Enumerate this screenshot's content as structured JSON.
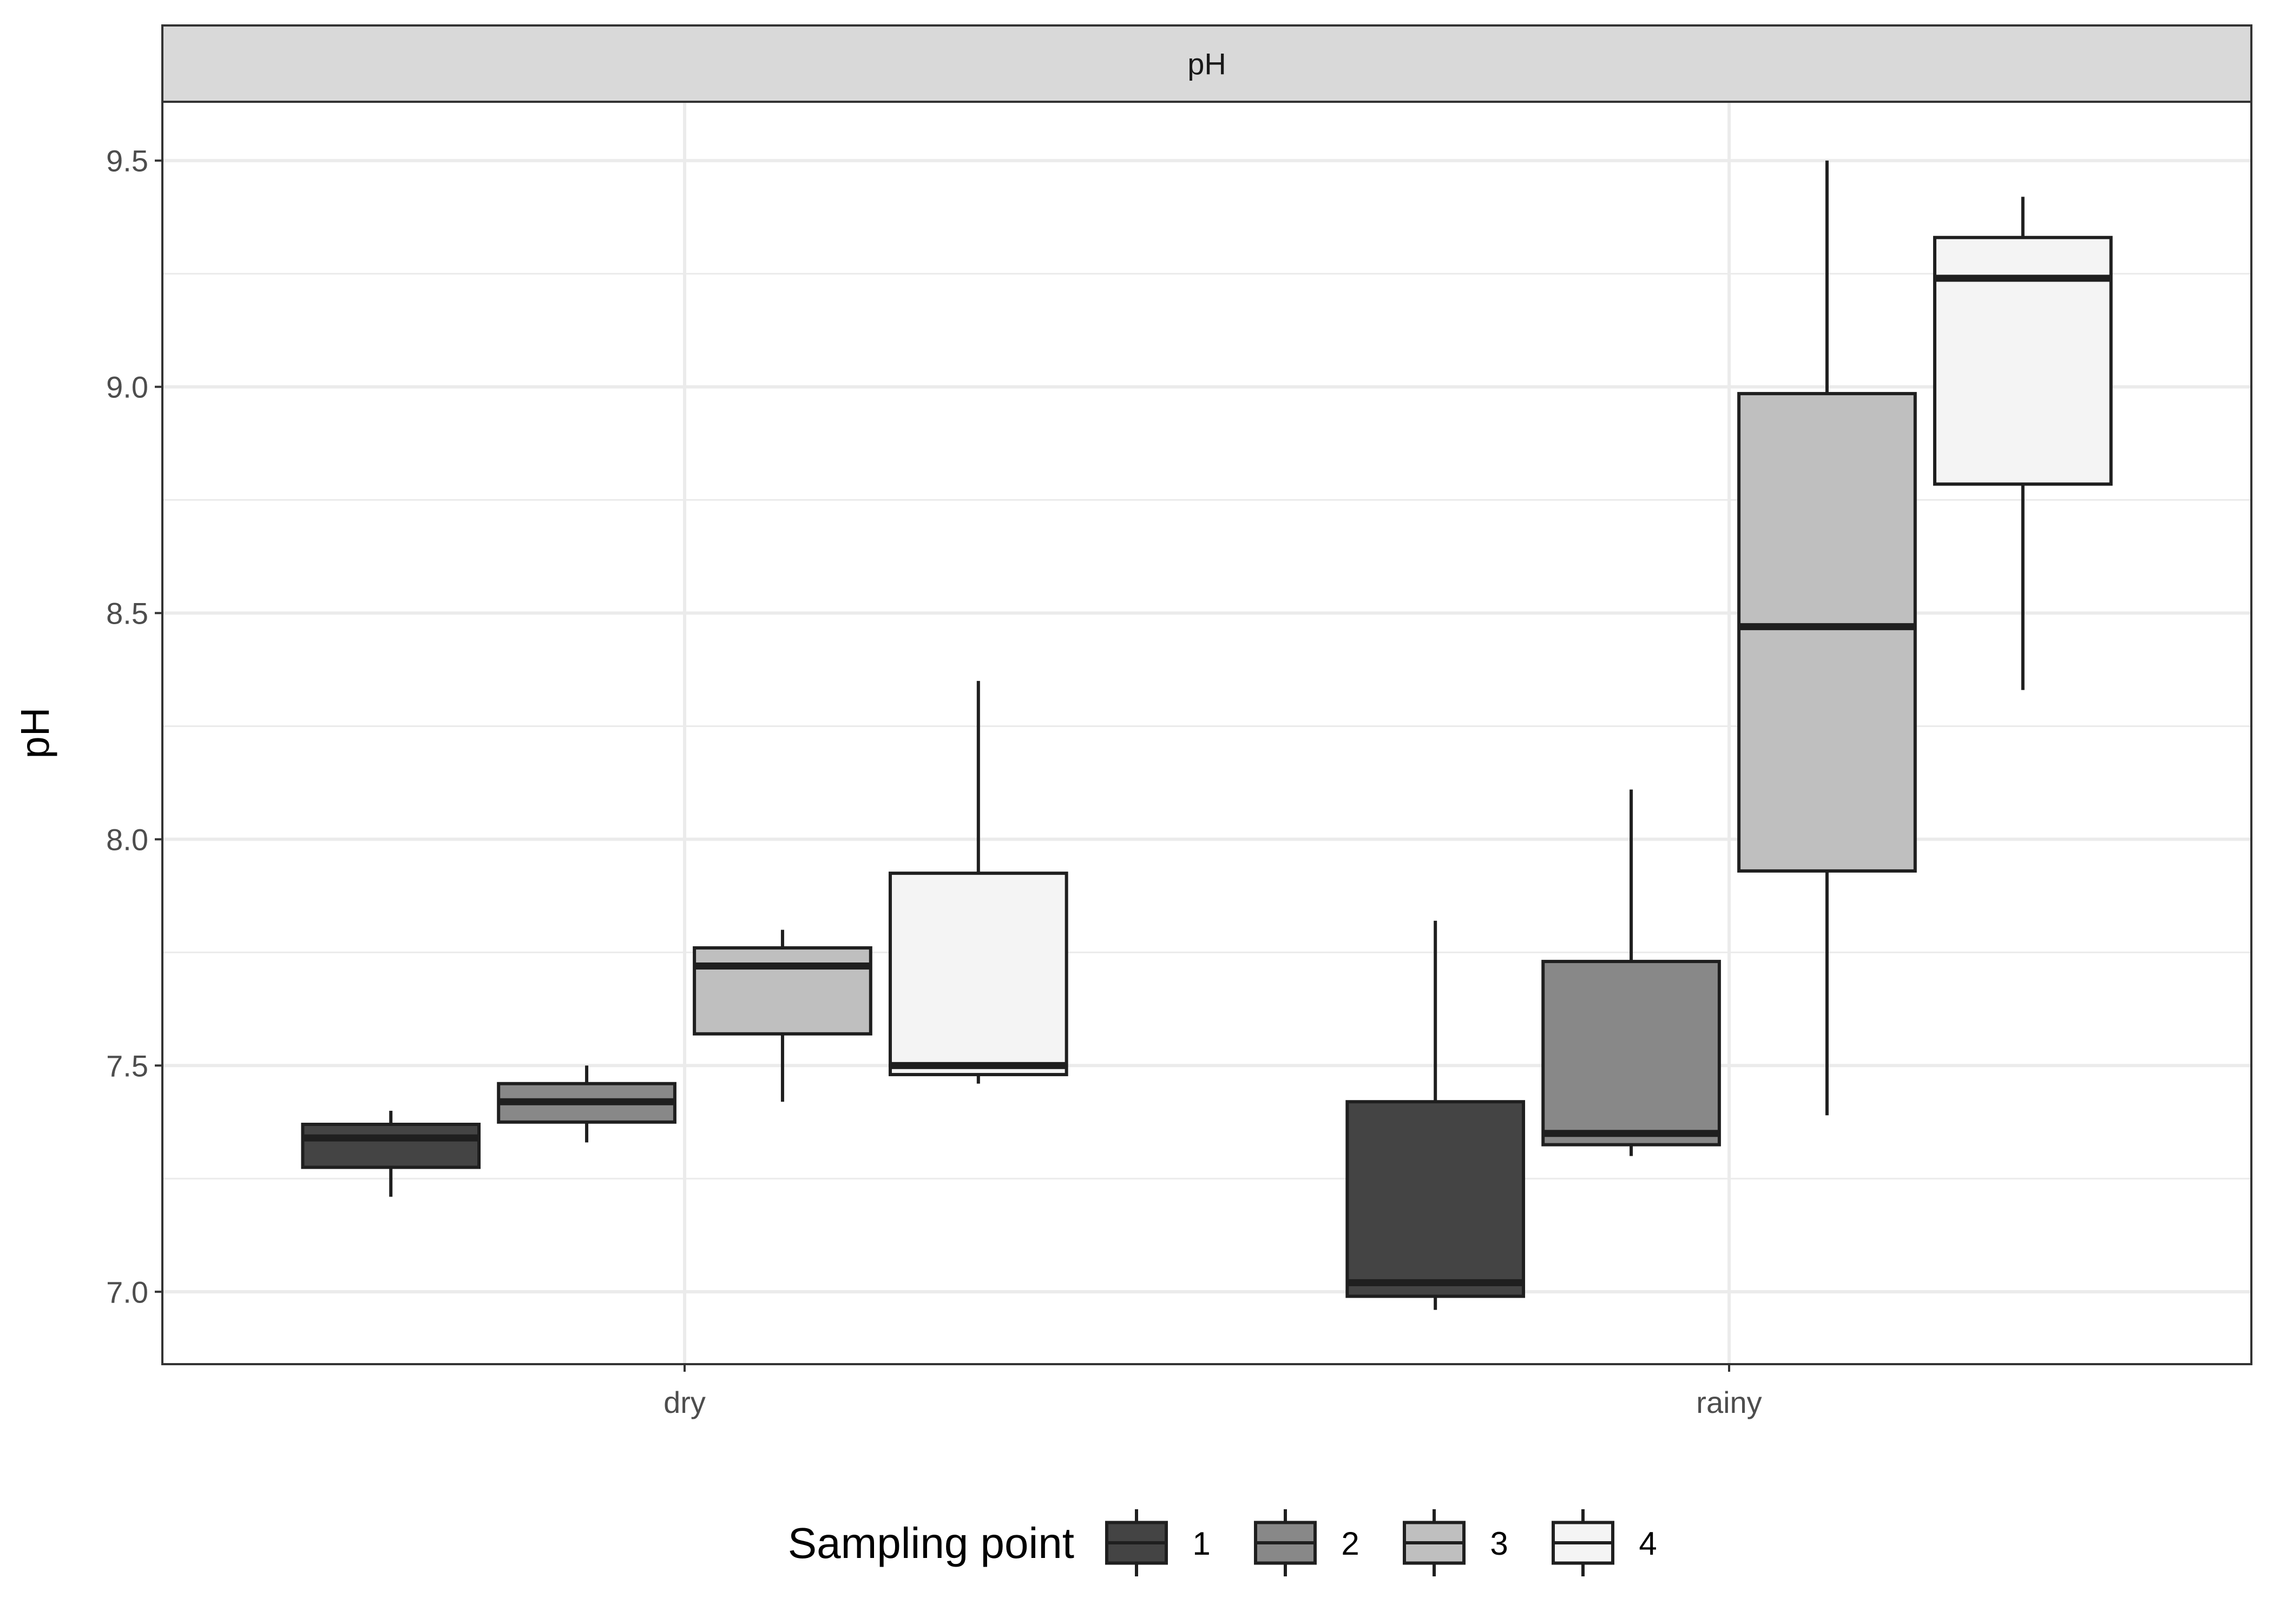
{
  "chart_data": {
    "type": "boxplot",
    "facet_label": "pH",
    "ylabel": "pH",
    "xlabel": "",
    "ylim": [
      6.84,
      9.63
    ],
    "yticks": [
      7.0,
      7.5,
      8.0,
      8.5,
      9.0,
      9.5
    ],
    "ytick_labels": [
      "7.0",
      "7.5",
      "8.0",
      "8.5",
      "9.0",
      "9.5"
    ],
    "categories": [
      "dry",
      "rainy"
    ],
    "grid": true,
    "legend": {
      "title": "Sampling point",
      "position": "bottom",
      "entries": [
        "1",
        "2",
        "3",
        "4"
      ]
    },
    "series": [
      {
        "name": "1",
        "color": "#444444",
        "boxes": [
          {
            "category": "dry",
            "min": 7.21,
            "q1": 7.275,
            "median": 7.34,
            "q3": 7.37,
            "max": 7.4
          },
          {
            "category": "rainy",
            "min": 6.96,
            "q1": 6.99,
            "median": 7.02,
            "q3": 7.42,
            "max": 7.82
          }
        ]
      },
      {
        "name": "2",
        "color": "#888888",
        "boxes": [
          {
            "category": "dry",
            "min": 7.33,
            "q1": 7.375,
            "median": 7.42,
            "q3": 7.46,
            "max": 7.5
          },
          {
            "category": "rainy",
            "min": 7.3,
            "q1": 7.325,
            "median": 7.35,
            "q3": 7.73,
            "max": 8.11
          }
        ]
      },
      {
        "name": "3",
        "color": "#bfbfbf",
        "boxes": [
          {
            "category": "dry",
            "min": 7.42,
            "q1": 7.57,
            "median": 7.72,
            "q3": 7.76,
            "max": 7.8
          },
          {
            "category": "rainy",
            "min": 7.39,
            "q1": 7.93,
            "median": 8.47,
            "q3": 8.985,
            "max": 9.5
          }
        ]
      },
      {
        "name": "4",
        "color": "#f4f4f4",
        "boxes": [
          {
            "category": "dry",
            "min": 7.46,
            "q1": 7.48,
            "median": 7.5,
            "q3": 7.925,
            "max": 8.35
          },
          {
            "category": "rainy",
            "min": 8.33,
            "q1": 8.785,
            "median": 9.24,
            "q3": 9.33,
            "max": 9.42
          }
        ]
      }
    ]
  }
}
